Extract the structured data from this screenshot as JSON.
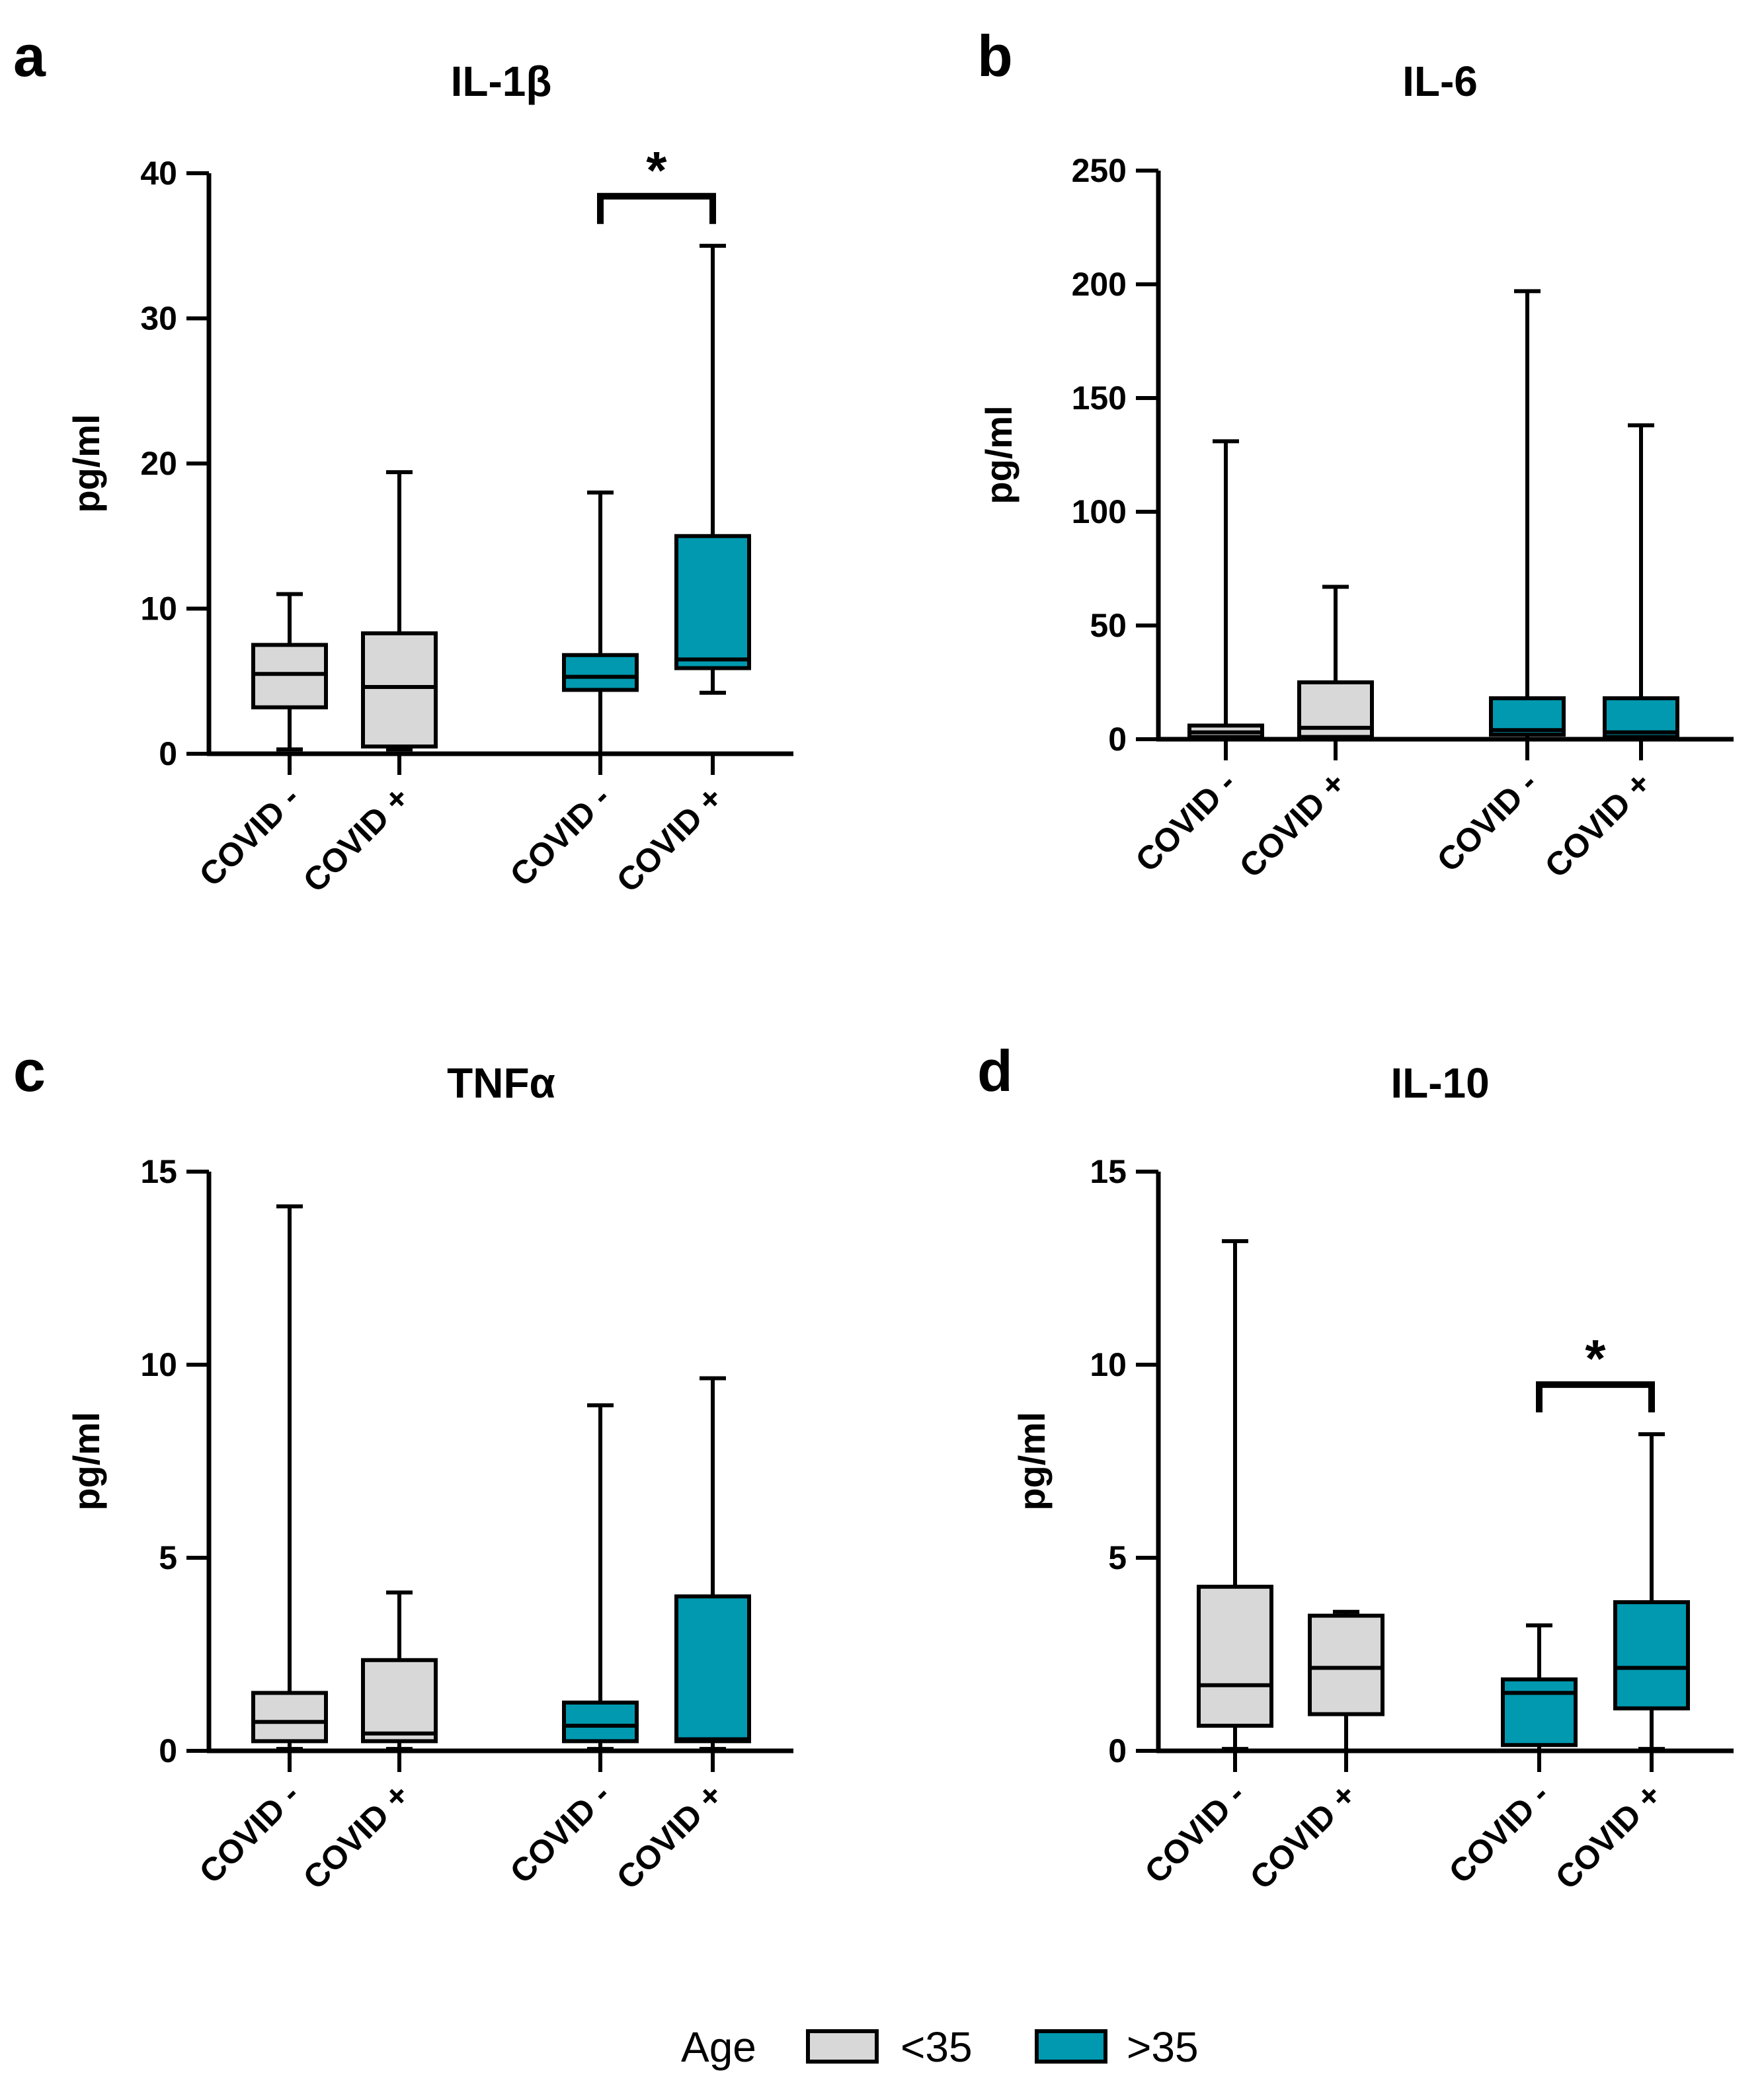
{
  "chart_data": [
    {
      "type": "box",
      "panel_label": "a",
      "title": "IL-1β",
      "ylabel": "pg/ml",
      "ylim": [
        0,
        40
      ],
      "yticks": [
        0,
        10,
        20,
        30,
        40
      ],
      "categories": [
        "COVID -",
        "COVID +",
        "COVID -",
        "COVID +"
      ],
      "groups": [
        "<35",
        "<35",
        ">35",
        ">35"
      ],
      "boxes": [
        {
          "min": 0.3,
          "q1": 3.2,
          "median": 5.5,
          "q3": 7.5,
          "max": 11
        },
        {
          "min": 0.3,
          "q1": 0.5,
          "median": 4.6,
          "q3": 8.3,
          "max": 19.4
        },
        {
          "min": 0,
          "q1": 4.4,
          "median": 5.3,
          "q3": 6.8,
          "max": 18
        },
        {
          "min": 4.2,
          "q1": 5.9,
          "median": 6.5,
          "q3": 15,
          "max": 35
        }
      ],
      "significance": [
        {
          "from": 2,
          "to": 3,
          "label": "*"
        }
      ]
    },
    {
      "type": "box",
      "panel_label": "b",
      "title": "IL-6",
      "ylabel": "pg/ml",
      "ylim": [
        0,
        250
      ],
      "yticks": [
        0,
        50,
        100,
        150,
        200,
        250
      ],
      "categories": [
        "COVID -",
        "COVID +",
        "COVID -",
        "COVID +"
      ],
      "groups": [
        "<35",
        "<35",
        ">35",
        ">35"
      ],
      "boxes": [
        {
          "min": 0,
          "q1": 1,
          "median": 3,
          "q3": 6,
          "max": 131
        },
        {
          "min": 0,
          "q1": 1,
          "median": 5,
          "q3": 25,
          "max": 67
        },
        {
          "min": 0,
          "q1": 2,
          "median": 4,
          "q3": 18,
          "max": 197
        },
        {
          "min": 0,
          "q1": 1,
          "median": 3,
          "q3": 18,
          "max": 138
        }
      ],
      "significance": []
    },
    {
      "type": "box",
      "panel_label": "c",
      "title": "TNFα",
      "ylabel": "pg/ml",
      "ylim": [
        0,
        15
      ],
      "yticks": [
        0,
        5,
        10,
        15
      ],
      "categories": [
        "COVID -",
        "COVID +",
        "COVID -",
        "COVID +"
      ],
      "groups": [
        "<35",
        "<35",
        ">35",
        ">35"
      ],
      "boxes": [
        {
          "min": 0.05,
          "q1": 0.25,
          "median": 0.75,
          "q3": 1.5,
          "max": 14.1
        },
        {
          "min": 0.05,
          "q1": 0.25,
          "median": 0.45,
          "q3": 2.35,
          "max": 4.1
        },
        {
          "min": 0.05,
          "q1": 0.25,
          "median": 0.65,
          "q3": 1.25,
          "max": 8.95
        },
        {
          "min": 0.05,
          "q1": 0.25,
          "median": 0.3,
          "q3": 4.0,
          "max": 9.65
        }
      ],
      "significance": []
    },
    {
      "type": "box",
      "panel_label": "d",
      "title": "IL-10",
      "ylabel": "pg/ml",
      "ylim": [
        0,
        15
      ],
      "yticks": [
        0,
        5,
        10,
        15
      ],
      "categories": [
        "COVID -",
        "COVID +",
        "COVID -",
        "COVID +"
      ],
      "groups": [
        "<35",
        "<35",
        ">35",
        ">35"
      ],
      "boxes": [
        {
          "min": 0.05,
          "q1": 0.65,
          "median": 1.7,
          "q3": 4.25,
          "max": 13.2
        },
        {
          "min": 0,
          "q1": 0.95,
          "median": 2.15,
          "q3": 3.5,
          "max": 3.6
        },
        {
          "min": 0,
          "q1": 0.15,
          "median": 1.5,
          "q3": 1.85,
          "max": 3.25
        },
        {
          "min": 0.05,
          "q1": 1.1,
          "median": 2.15,
          "q3": 3.85,
          "max": 8.2
        }
      ],
      "significance": [
        {
          "from": 2,
          "to": 3,
          "label": "*"
        }
      ]
    }
  ],
  "legend": {
    "title": "Age",
    "items": [
      {
        "label": "<35",
        "color": "#d8d8d8"
      },
      {
        "label": ">35",
        "color": "#0099b0"
      }
    ]
  }
}
